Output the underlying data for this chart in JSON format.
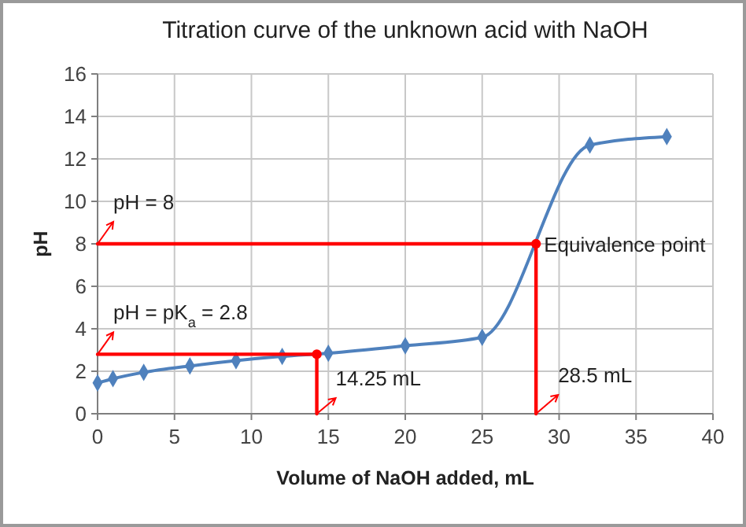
{
  "chart_data": {
    "type": "line",
    "title": "Titration curve of the unknown acid with NaOH",
    "xlabel": "Volume of NaOH added, mL",
    "ylabel": "pH",
    "series": [
      {
        "color": "#4f81bd",
        "x": [
          0,
          1,
          3,
          6,
          9,
          12,
          15,
          20,
          25,
          32,
          37
        ],
        "values": [
          1.45,
          1.65,
          1.95,
          2.25,
          2.5,
          2.7,
          2.85,
          3.2,
          3.6,
          12.65,
          13.05
        ],
        "marker": "diamond"
      },
      {
        "color": "#ff0000",
        "x": [
          0,
          14.25,
          14.25
        ],
        "values": [
          2.8,
          2.8,
          0
        ],
        "marker": "none"
      },
      {
        "color": "#ff0000",
        "x": [
          0,
          28.5,
          28.5
        ],
        "values": [
          8,
          8,
          0
        ],
        "marker": "none"
      },
      {
        "type": "scatter",
        "color": "#ff0000",
        "x": [
          14.25,
          28.5
        ],
        "values": [
          2.8,
          8
        ],
        "marker": "circle"
      }
    ],
    "annotations": [
      {
        "text": "pH = 8",
        "x": 0,
        "y": 8
      },
      {
        "text": "pH = pK$_{a}$ = 2.8",
        "x": 0,
        "y": 2.8
      },
      {
        "text": "14.25 mL",
        "x": 14.25,
        "y": 0
      },
      {
        "text": "28.5 mL",
        "x": 28.5,
        "y": 0
      },
      {
        "text": "Equivalence point",
        "x": 28.5,
        "y": 8
      }
    ],
    "xlim": [
      0,
      40
    ],
    "xticks": [
      0,
      5,
      10,
      15,
      20,
      25,
      30,
      35,
      40
    ],
    "ylim": [
      0,
      16
    ],
    "yticks": [
      0,
      2,
      4,
      6,
      8,
      10,
      12,
      14,
      16
    ],
    "grid": true
  }
}
